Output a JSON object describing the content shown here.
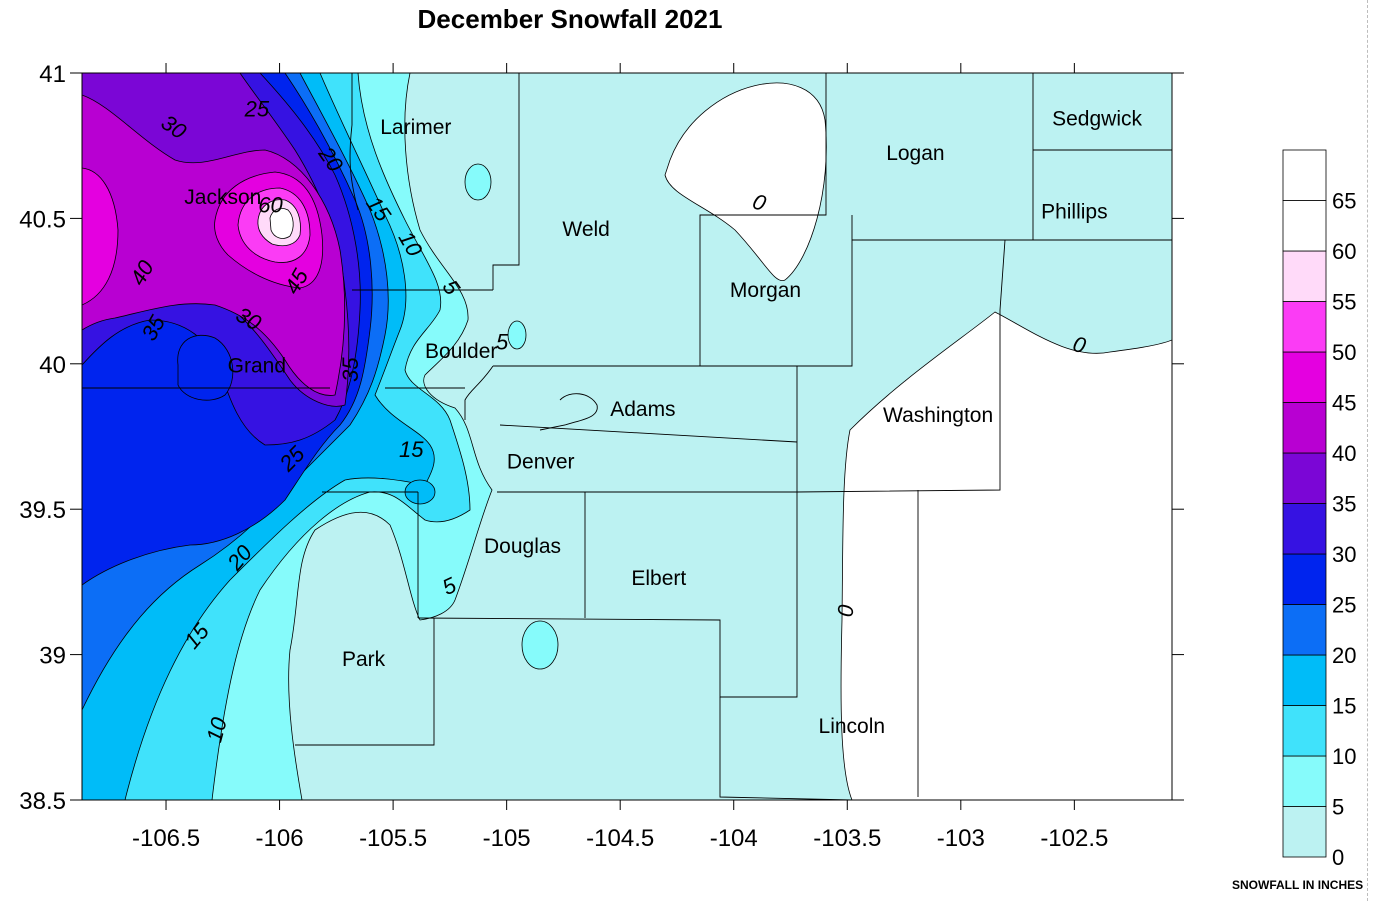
{
  "title": "December Snowfall 2021",
  "colorbar": {
    "unit": "SNOWFALL IN INCHES",
    "levels": [
      "0",
      "5",
      "10",
      "15",
      "20",
      "25",
      "30",
      "35",
      "40",
      "45",
      "50",
      "55",
      "60",
      "65"
    ],
    "colors": [
      "#bcf2f2",
      "#86fbfb",
      "#40e2fb",
      "#00bcf8",
      "#0c6ef6",
      "#0024ee",
      "#3612e2",
      "#7b06d6",
      "#b800d2",
      "#e400e0",
      "#fb3cf5",
      "#ffdaf9",
      "#ffffff",
      "#ffffff"
    ]
  },
  "axes": {
    "x_ticks": [
      "-106.5",
      "-106",
      "-105.5",
      "-105",
      "-104.5",
      "-104",
      "-103.5",
      "-103",
      "-102.5"
    ],
    "y_ticks": [
      "41",
      "40.5",
      "40",
      "39.5",
      "39",
      "38.5"
    ],
    "x_range": [
      -106.87,
      -102.07
    ],
    "y_range": [
      38.5,
      41.0
    ]
  },
  "counties": [
    {
      "name": "Larimer",
      "lon": -105.4,
      "lat": 40.79
    },
    {
      "name": "Sedgwick",
      "lon": -102.4,
      "lat": 40.82
    },
    {
      "name": "Logan",
      "lon": -103.2,
      "lat": 40.7
    },
    {
      "name": "Jackson",
      "lon": -106.25,
      "lat": 40.55
    },
    {
      "name": "Phillips",
      "lon": -102.5,
      "lat": 40.5
    },
    {
      "name": "Weld",
      "lon": -104.65,
      "lat": 40.44
    },
    {
      "name": "Morgan",
      "lon": -103.86,
      "lat": 40.23
    },
    {
      "name": "Boulder",
      "lon": -105.2,
      "lat": 40.02
    },
    {
      "name": "Grand",
      "lon": -106.1,
      "lat": 39.97
    },
    {
      "name": "Adams",
      "lon": -104.4,
      "lat": 39.82
    },
    {
      "name": "Washington",
      "lon": -103.1,
      "lat": 39.8
    },
    {
      "name": "Denver",
      "lon": -104.85,
      "lat": 39.64
    },
    {
      "name": "Douglas",
      "lon": -104.93,
      "lat": 39.35
    },
    {
      "name": "Elbert",
      "lon": -104.33,
      "lat": 39.24
    },
    {
      "name": "Park",
      "lon": -105.63,
      "lat": 38.96
    },
    {
      "name": "Lincoln",
      "lon": -103.48,
      "lat": 38.73
    }
  ],
  "contour_labels": [
    {
      "text": "25",
      "lon": -106.1,
      "lat": 40.87,
      "rot": 0
    },
    {
      "text": "30",
      "lon": -106.47,
      "lat": 40.81,
      "rot": 35
    },
    {
      "text": "20",
      "lon": -105.78,
      "lat": 40.7,
      "rot": 55
    },
    {
      "text": "60",
      "lon": -106.04,
      "lat": 40.54,
      "rot": 0
    },
    {
      "text": "15",
      "lon": -105.57,
      "lat": 40.53,
      "rot": 55
    },
    {
      "text": "10",
      "lon": -105.43,
      "lat": 40.41,
      "rot": 60
    },
    {
      "text": "0",
      "lon": -103.89,
      "lat": 40.55,
      "rot": 20
    },
    {
      "text": "40",
      "lon": -106.6,
      "lat": 40.31,
      "rot": -60
    },
    {
      "text": "45",
      "lon": -105.92,
      "lat": 40.28,
      "rot": -60
    },
    {
      "text": "5",
      "lon": -105.25,
      "lat": 40.26,
      "rot": 55
    },
    {
      "text": "35",
      "lon": -106.55,
      "lat": 40.12,
      "rot": -60
    },
    {
      "text": "30",
      "lon": -106.14,
      "lat": 40.15,
      "rot": 30
    },
    {
      "text": "5",
      "lon": -105.02,
      "lat": 40.07,
      "rot": 0
    },
    {
      "text": "0",
      "lon": -102.48,
      "lat": 40.06,
      "rot": 15
    },
    {
      "text": "35",
      "lon": -105.68,
      "lat": 39.98,
      "rot": -90
    },
    {
      "text": "15",
      "lon": -105.42,
      "lat": 39.7,
      "rot": 0
    },
    {
      "text": "25",
      "lon": -105.94,
      "lat": 39.67,
      "rot": -45
    },
    {
      "text": "20",
      "lon": -106.17,
      "lat": 39.33,
      "rot": -50
    },
    {
      "text": "5",
      "lon": -105.25,
      "lat": 39.23,
      "rot": -25
    },
    {
      "text": "0",
      "lon": -103.5,
      "lat": 39.15,
      "rot": -85
    },
    {
      "text": "15",
      "lon": -106.36,
      "lat": 39.06,
      "rot": -50
    },
    {
      "text": "10",
      "lon": -106.27,
      "lat": 38.74,
      "rot": -75
    }
  ]
}
